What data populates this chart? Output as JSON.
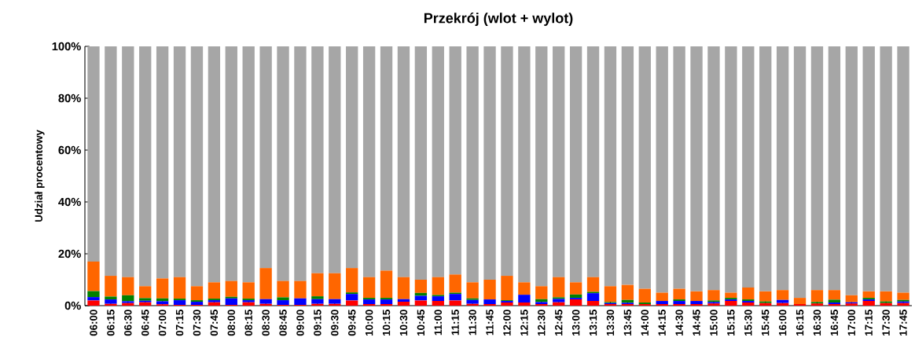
{
  "chart_data": {
    "type": "bar",
    "stacked": true,
    "title": "Przekrój (wlot + wylot)",
    "ylabel": "Udział procentowy",
    "categories": [
      "06:00",
      "06:15",
      "06:30",
      "06:45",
      "07:00",
      "07:15",
      "07:30",
      "07:45",
      "08:00",
      "08:15",
      "08:30",
      "08:45",
      "09:00",
      "09:15",
      "09:30",
      "09:45",
      "10:00",
      "10:15",
      "10:30",
      "10:45",
      "11:00",
      "11:15",
      "11:30",
      "11:45",
      "12:00",
      "12:15",
      "12:30",
      "12:45",
      "13:00",
      "13:15",
      "13:30",
      "13:45",
      "14:00",
      "14:15",
      "14:30",
      "14:45",
      "15:00",
      "15:15",
      "15:30",
      "15:45",
      "16:00",
      "16:15",
      "16:30",
      "16:45",
      "17:00",
      "17:15",
      "17:30",
      "17:45"
    ],
    "series": [
      {
        "color": "#ff0000",
        "values": [
          2,
          0.7,
          1,
          1.3,
          0.5,
          0.3,
          0.3,
          1.3,
          0.3,
          1.3,
          0.7,
          0.3,
          0.3,
          0.7,
          0.7,
          2,
          0.6,
          0.6,
          1.5,
          2,
          1.8,
          2,
          0.7,
          0.6,
          1.2,
          1.2,
          0.6,
          1.3,
          2.4,
          1.8,
          0.6,
          0.6,
          0.6,
          0.6,
          0.6,
          0.6,
          0.8,
          1.8,
          1.2,
          1,
          1,
          0.6,
          0.8,
          0.6,
          0.8,
          1.8,
          1,
          1
        ]
      },
      {
        "color": "#0000ff",
        "values": [
          1.3,
          1.7,
          0.7,
          0.6,
          1.2,
          1.8,
          1.2,
          0.8,
          2.5,
          0.8,
          1.8,
          1.8,
          2.5,
          1.8,
          1.8,
          2.5,
          1.8,
          1.8,
          1,
          1.8,
          1.8,
          2.5,
          1.5,
          1.8,
          0.6,
          3,
          0.8,
          1.3,
          0.6,
          3,
          0.4,
          0.5,
          0,
          1.2,
          1.2,
          1.2,
          0.6,
          0.6,
          0.6,
          0,
          1.2,
          0,
          0,
          0.6,
          0.5,
          0.6,
          0,
          0.6
        ]
      },
      {
        "color": "#008000",
        "values": [
          2.3,
          1.1,
          2.3,
          1,
          1.1,
          0.6,
          0.6,
          0.6,
          0.6,
          0.6,
          0,
          1.1,
          0,
          1.1,
          0,
          0.6,
          0.6,
          0.6,
          0,
          1.1,
          0.5,
          0.5,
          0.6,
          0,
          0.3,
          0,
          1.1,
          0.6,
          1.3,
          0.5,
          0.4,
          1.1,
          0.6,
          0,
          0.6,
          0,
          0.6,
          0.6,
          0.6,
          0.6,
          0,
          0,
          0.6,
          1.1,
          0,
          0.6,
          0.6,
          0.6
        ]
      },
      {
        "color": "#ff6600",
        "values": [
          11.4,
          8,
          7,
          4.6,
          7.7,
          8.3,
          5.4,
          6.3,
          6.1,
          6.3,
          12,
          6.3,
          6.7,
          8.9,
          10,
          9.4,
          8,
          10.5,
          8.5,
          5.1,
          6.9,
          7,
          6.2,
          7.6,
          9.4,
          4.8,
          5,
          7.8,
          4.7,
          5.7,
          6.1,
          5.8,
          5.3,
          3.2,
          4.1,
          3.7,
          4,
          2,
          4.6,
          3.9,
          3.8,
          2.4,
          4.6,
          3.7,
          2.7,
          2.5,
          3.9,
          2.8
        ]
      },
      {
        "color": "#a6a6a6",
        "values": [
          83,
          88.5,
          89,
          92.5,
          89.5,
          89,
          92.5,
          91,
          90.5,
          91,
          85.5,
          90.5,
          90.5,
          87.5,
          87.5,
          85.5,
          89,
          86.5,
          89,
          90,
          89,
          88,
          91,
          90,
          88.5,
          91,
          92.5,
          89,
          91,
          89,
          92.5,
          92,
          93.5,
          95,
          93.5,
          94.5,
          94,
          95,
          93,
          94.5,
          94,
          97,
          94,
          94,
          96,
          94.5,
          94.5,
          95
        ]
      }
    ],
    "ylim": [
      0,
      100
    ],
    "yticks": [
      {
        "value": 0,
        "label": "0%"
      },
      {
        "value": 20,
        "label": "20%"
      },
      {
        "value": 40,
        "label": "40%"
      },
      {
        "value": 60,
        "label": "60%"
      },
      {
        "value": 80,
        "label": "80%"
      },
      {
        "value": 100,
        "label": "100%"
      }
    ]
  }
}
